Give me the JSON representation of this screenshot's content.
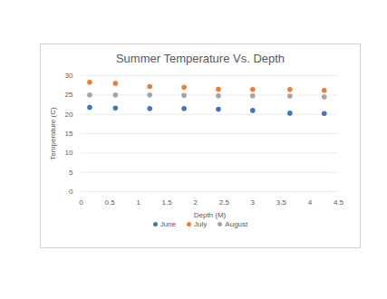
{
  "chart_data": {
    "type": "scatter",
    "title": "Summer Temperature Vs. Depth",
    "x_label": "Depth (M)",
    "y_label": "Temperature (C)",
    "x": [
      0.15,
      0.6,
      1.2,
      1.8,
      2.4,
      3.0,
      3.65,
      4.25
    ],
    "series": [
      {
        "name": "June",
        "color": "#4472c4",
        "values": [
          21.8,
          21.6,
          21.5,
          21.5,
          21.3,
          21.0,
          20.3,
          20.2
        ]
      },
      {
        "name": "July",
        "color": "#ed7d31",
        "values": [
          28.3,
          28.0,
          27.2,
          27.0,
          26.5,
          26.4,
          26.4,
          26.2
        ]
      },
      {
        "name": "August",
        "color": "#a5a5a5",
        "values": [
          25.0,
          25.0,
          25.0,
          24.9,
          24.8,
          24.8,
          24.7,
          24.5
        ]
      }
    ],
    "xlim": [
      0,
      4.5
    ],
    "xticks": [
      0,
      0.5,
      1,
      1.5,
      2,
      2.5,
      3,
      3.5,
      4,
      4.5
    ],
    "ylim": [
      0,
      30
    ],
    "yticks": [
      0,
      5,
      10,
      15,
      20,
      25,
      30
    ],
    "grid": true,
    "legend": "bottom",
    "marker": "circle"
  }
}
